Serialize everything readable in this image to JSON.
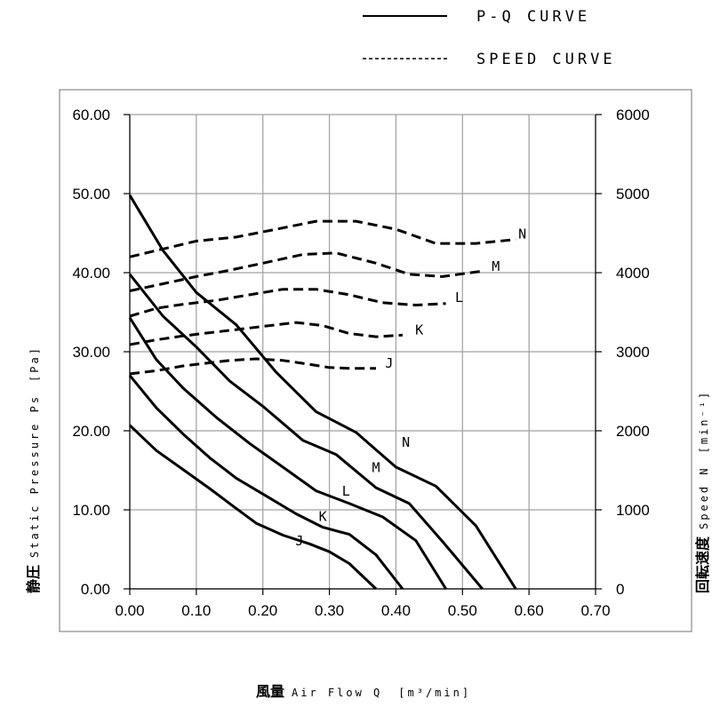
{
  "chart_data": {
    "type": "line",
    "legend": {
      "placement": "top-right",
      "entries": [
        {
          "label": "P-Q CURVE",
          "style": "solid"
        },
        {
          "label": "SPEED CURVE",
          "style": "dashed"
        }
      ]
    },
    "x_axis": {
      "label_cjk": "風量",
      "label": "Air Flow Q",
      "unit": "[m³/min]",
      "range": [
        0,
        0.7
      ],
      "ticks": [
        "0.00",
        "0.10",
        "0.20",
        "0.30",
        "0.40",
        "0.50",
        "0.60",
        "0.70"
      ]
    },
    "y_axis_left": {
      "label_cjk": "静圧",
      "label": "Static Pressure Ps",
      "unit": "[Pa]",
      "range": [
        0,
        60
      ],
      "ticks": [
        "0.00",
        "10.00",
        "20.00",
        "30.00",
        "40.00",
        "50.00",
        "60.00"
      ]
    },
    "y_axis_right": {
      "label_cjk": "回転速度",
      "label": "Speed N",
      "unit": "[min⁻¹]",
      "range": [
        0,
        6000
      ],
      "ticks": [
        "0",
        "1000",
        "2000",
        "3000",
        "4000",
        "5000",
        "6000"
      ]
    },
    "grid": true,
    "series": [
      {
        "name": "N",
        "kind": "P-Q",
        "style": "solid",
        "x": [
          0.0,
          0.05,
          0.1,
          0.16,
          0.22,
          0.28,
          0.34,
          0.4,
          0.46,
          0.52,
          0.58
        ],
        "y": [
          49.8,
          42.8,
          37.5,
          33.4,
          27.4,
          22.4,
          19.8,
          15.4,
          13.0,
          8.0,
          0.0
        ]
      },
      {
        "name": "M",
        "kind": "P-Q",
        "style": "solid",
        "x": [
          0.0,
          0.05,
          0.1,
          0.15,
          0.2,
          0.26,
          0.31,
          0.37,
          0.42,
          0.47,
          0.53
        ],
        "y": [
          39.8,
          34.5,
          30.6,
          26.3,
          23.1,
          18.8,
          17.0,
          12.8,
          10.8,
          6.0,
          0.0
        ]
      },
      {
        "name": "L",
        "kind": "P-Q",
        "style": "solid",
        "x": [
          0.0,
          0.04,
          0.08,
          0.13,
          0.18,
          0.23,
          0.28,
          0.33,
          0.38,
          0.43,
          0.475
        ],
        "y": [
          34.3,
          29.0,
          25.4,
          21.7,
          18.4,
          15.4,
          12.4,
          10.8,
          9.1,
          6.1,
          0.0
        ]
      },
      {
        "name": "K",
        "kind": "P-Q",
        "style": "solid",
        "x": [
          0.0,
          0.04,
          0.08,
          0.12,
          0.16,
          0.2,
          0.25,
          0.29,
          0.33,
          0.37,
          0.41
        ],
        "y": [
          27.0,
          22.9,
          19.6,
          16.6,
          14.0,
          12.0,
          9.5,
          7.8,
          6.9,
          4.3,
          0.0
        ]
      },
      {
        "name": "J",
        "kind": "P-Q",
        "style": "solid",
        "x": [
          0.0,
          0.04,
          0.08,
          0.12,
          0.15,
          0.19,
          0.23,
          0.27,
          0.3,
          0.33,
          0.37
        ],
        "y": [
          20.7,
          17.5,
          15.1,
          12.7,
          10.8,
          8.3,
          6.8,
          5.7,
          4.7,
          3.2,
          0.0
        ]
      },
      {
        "name": "N",
        "kind": "speed",
        "style": "dashed",
        "x": [
          0.0,
          0.05,
          0.1,
          0.16,
          0.22,
          0.28,
          0.34,
          0.4,
          0.46,
          0.52,
          0.58
        ],
        "y": [
          4200,
          4300,
          4400,
          4450,
          4550,
          4650,
          4650,
          4550,
          4370,
          4370,
          4420
        ]
      },
      {
        "name": "M",
        "kind": "speed",
        "style": "dashed",
        "x": [
          0.0,
          0.05,
          0.1,
          0.15,
          0.2,
          0.26,
          0.31,
          0.37,
          0.42,
          0.47,
          0.53
        ],
        "y": [
          3770,
          3860,
          3950,
          4030,
          4120,
          4230,
          4250,
          4120,
          3980,
          3950,
          4020
        ]
      },
      {
        "name": "L",
        "kind": "speed",
        "style": "dashed",
        "x": [
          0.0,
          0.04,
          0.08,
          0.13,
          0.18,
          0.23,
          0.28,
          0.33,
          0.38,
          0.43,
          0.475
        ],
        "y": [
          3450,
          3550,
          3600,
          3650,
          3720,
          3790,
          3790,
          3720,
          3620,
          3590,
          3610
        ]
      },
      {
        "name": "K",
        "kind": "speed",
        "style": "dashed",
        "x": [
          0.0,
          0.04,
          0.08,
          0.12,
          0.16,
          0.2,
          0.25,
          0.29,
          0.33,
          0.37,
          0.41
        ],
        "y": [
          3090,
          3150,
          3200,
          3240,
          3280,
          3320,
          3370,
          3330,
          3230,
          3190,
          3210
        ]
      },
      {
        "name": "J",
        "kind": "speed",
        "style": "dashed",
        "x": [
          0.0,
          0.04,
          0.08,
          0.12,
          0.15,
          0.19,
          0.23,
          0.27,
          0.3,
          0.33,
          0.37
        ],
        "y": [
          2720,
          2760,
          2820,
          2860,
          2890,
          2910,
          2890,
          2840,
          2800,
          2790,
          2790
        ]
      }
    ],
    "curve_labels": [
      {
        "text": "N",
        "x": 0.415,
        "y": 18.0
      },
      {
        "text": "M",
        "x": 0.37,
        "y": 14.8
      },
      {
        "text": "L",
        "x": 0.325,
        "y": 11.8
      },
      {
        "text": "K",
        "x": 0.29,
        "y": 8.6
      },
      {
        "text": "J",
        "x": 0.255,
        "y": 5.5
      },
      {
        "text": "N",
        "x": 0.59,
        "y": 44.3
      },
      {
        "text": "M",
        "x": 0.55,
        "y": 40.2
      },
      {
        "text": "L",
        "x": 0.495,
        "y": 36.3
      },
      {
        "text": "K",
        "x": 0.435,
        "y": 32.2
      },
      {
        "text": "J",
        "x": 0.39,
        "y": 28.0
      }
    ]
  }
}
